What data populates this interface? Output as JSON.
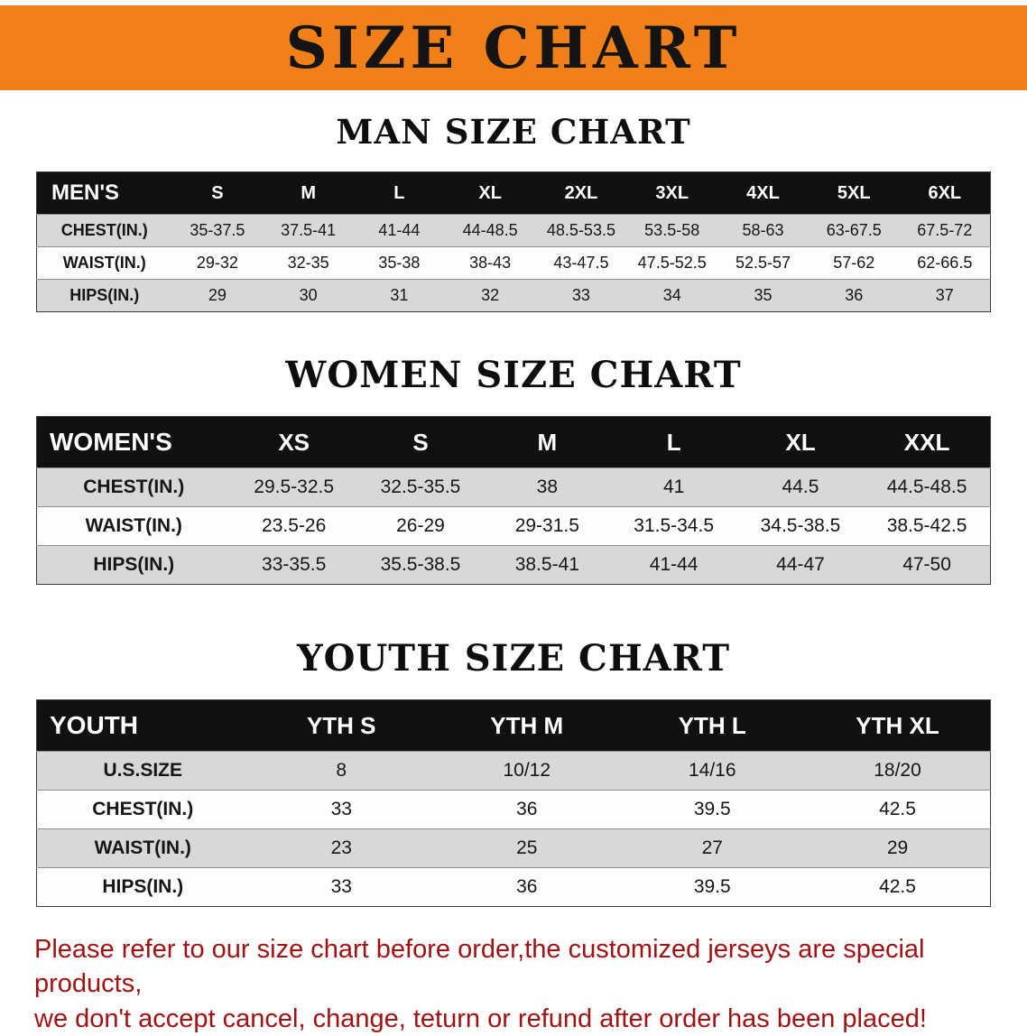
{
  "banner": {
    "title": "SIZE CHART",
    "bg_color": "#f28018"
  },
  "colors": {
    "banner_orange": "#f28018",
    "table_header_black": "#101010",
    "row_gray": "#d8d8d8",
    "footer_red": "#a31212"
  },
  "men": {
    "heading": "MAN SIZE CHART",
    "header": [
      "MEN'S",
      "S",
      "M",
      "L",
      "XL",
      "2XL",
      "3XL",
      "4XL",
      "5XL",
      "6XL"
    ],
    "rows": [
      [
        "CHEST(IN.)",
        "35-37.5",
        "37.5-41",
        "41-44",
        "44-48.5",
        "48.5-53.5",
        "53.5-58",
        "58-63",
        "63-67.5",
        "67.5-72"
      ],
      [
        "WAIST(IN.)",
        "29-32",
        "32-35",
        "35-38",
        "38-43",
        "43-47.5",
        "47.5-52.5",
        "52.5-57",
        "57-62",
        "62-66.5"
      ],
      [
        "HIPS(IN.)",
        "29",
        "30",
        "31",
        "32",
        "33",
        "34",
        "35",
        "36",
        "37"
      ]
    ]
  },
  "women": {
    "heading": "WOMEN SIZE CHART",
    "header": [
      "WOMEN'S",
      "XS",
      "S",
      "M",
      "L",
      "XL",
      "XXL"
    ],
    "rows": [
      [
        "CHEST(IN.)",
        "29.5-32.5",
        "32.5-35.5",
        "38",
        "41",
        "44.5",
        "44.5-48.5"
      ],
      [
        "WAIST(IN.)",
        "23.5-26",
        "26-29",
        "29-31.5",
        "31.5-34.5",
        "34.5-38.5",
        "38.5-42.5"
      ],
      [
        "HIPS(IN.)",
        "33-35.5",
        "35.5-38.5",
        "38.5-41",
        "41-44",
        "44-47",
        "47-50"
      ]
    ]
  },
  "youth": {
    "heading": "YOUTH SIZE CHART",
    "header": [
      "YOUTH",
      "YTH S",
      "YTH M",
      "YTH L",
      "YTH XL"
    ],
    "rows": [
      [
        "U.S.SIZE",
        "8",
        "10/12",
        "14/16",
        "18/20"
      ],
      [
        "CHEST(IN.)",
        "33",
        "36",
        "39.5",
        "42.5"
      ],
      [
        "WAIST(IN.)",
        "23",
        "25",
        "27",
        "29"
      ],
      [
        "HIPS(IN.)",
        "33",
        "36",
        "39.5",
        "42.5"
      ]
    ]
  },
  "footer": {
    "line1": "Please refer to our size chart before order,the customized jerseys are special products,",
    "line2": "we don't accept cancel, change, teturn or refund after order has been placed!"
  }
}
